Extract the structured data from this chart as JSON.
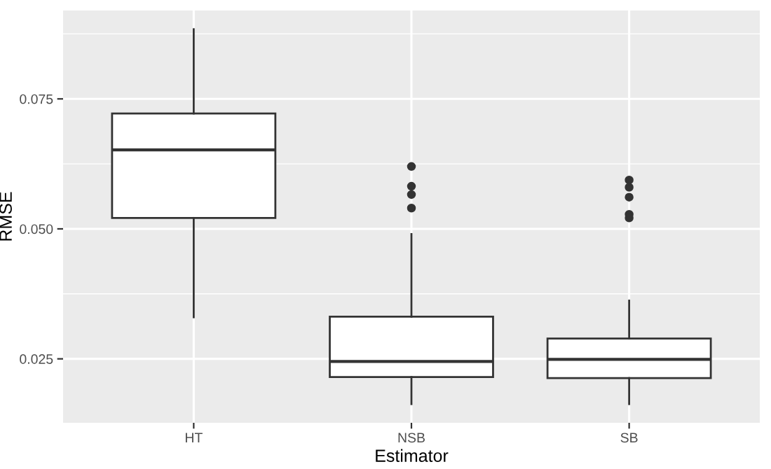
{
  "chart_data": {
    "type": "box",
    "xlabel": "Estimator",
    "ylabel": "RMSE",
    "categories": [
      "HT",
      "NSB",
      "SB"
    ],
    "boxes": [
      {
        "low": 0.033,
        "q1": 0.0521,
        "median": 0.0652,
        "q3": 0.0722,
        "high": 0.0884
      },
      {
        "low": 0.0163,
        "q1": 0.0215,
        "median": 0.0245,
        "q3": 0.0331,
        "high": 0.049,
        "outliers": [
          0.062,
          0.0582,
          0.0566,
          0.054
        ]
      },
      {
        "low": 0.0163,
        "q1": 0.0213,
        "median": 0.0249,
        "q3": 0.0289,
        "high": 0.0362,
        "outliers": [
          0.0594,
          0.058,
          0.0561,
          0.0528,
          0.0521
        ]
      }
    ],
    "ylim": [
      0.0127,
      0.092
    ],
    "yticks": [
      {
        "value": 0.025,
        "label": "0.025"
      },
      {
        "value": 0.05,
        "label": "0.050"
      },
      {
        "value": 0.075,
        "label": "0.075"
      }
    ],
    "grid": true
  }
}
